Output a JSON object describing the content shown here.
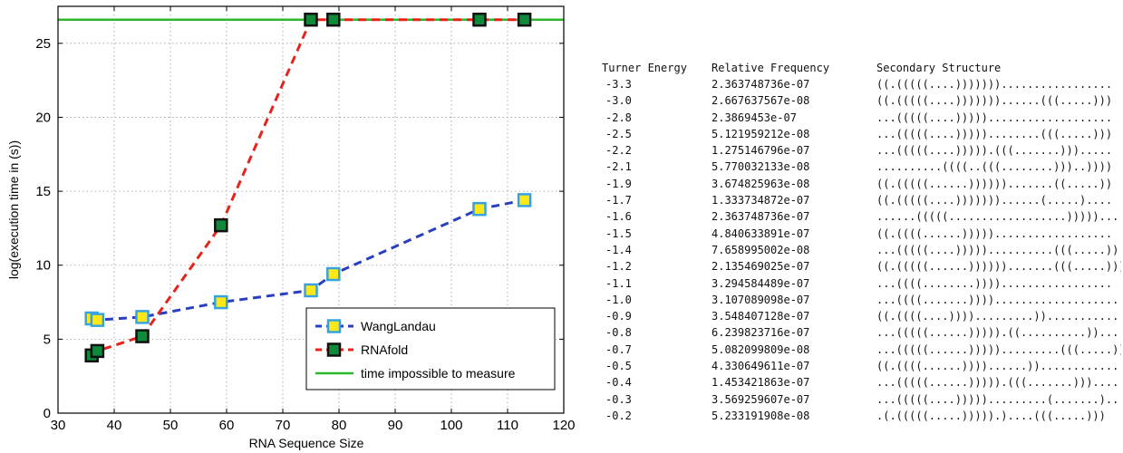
{
  "chart_data": {
    "type": "line",
    "xlabel": "RNA Sequence Size",
    "ylabel": "log(execution time in (s))",
    "xlim": [
      30,
      120
    ],
    "ylim": [
      0,
      27.5
    ],
    "x_ticks": [
      30,
      40,
      50,
      60,
      70,
      80,
      90,
      100,
      110,
      120
    ],
    "y_ticks": [
      0,
      5,
      10,
      15,
      20,
      25
    ],
    "grid": true,
    "legend_position": "bottom-right",
    "series": [
      {
        "name": "WangLandau",
        "color": "#2a3fbf",
        "marker_face": "#ffe81a",
        "marker_edge": "#36a3e0",
        "points": [
          [
            36,
            6.4
          ],
          [
            37,
            6.3
          ],
          [
            45,
            6.5
          ],
          [
            59,
            7.5
          ],
          [
            75,
            8.3
          ],
          [
            79,
            9.4
          ],
          [
            105,
            13.8
          ],
          [
            113,
            14.4
          ]
        ]
      },
      {
        "name": "RNAfold",
        "color": "#e8231c",
        "marker_face": "#0e8a3a",
        "marker_edge": "#111111",
        "points": [
          [
            36,
            3.9
          ],
          [
            37,
            4.2
          ],
          [
            45,
            5.2
          ],
          [
            59,
            12.7
          ],
          [
            75,
            26.6
          ],
          [
            79,
            26.6
          ],
          [
            105,
            26.6
          ],
          [
            113,
            26.6
          ]
        ]
      },
      {
        "name": "time impossible to measure",
        "color": "#2bb82b",
        "type": "hline",
        "y": 26.6
      }
    ]
  },
  "table": {
    "headers": [
      "Turner Energy",
      "Relative Frequency",
      "Secondary Structure"
    ],
    "rows": [
      [
        "-3.3",
        "2.363748736e-07",
        "((.(((((....)))))))................."
      ],
      [
        "-3.0",
        "2.667637567e-08",
        "((.(((((....)))))))......(((.....)))"
      ],
      [
        "-2.8",
        "2.3869453e-07",
        "...(((((....)))))..................."
      ],
      [
        "-2.5",
        "5.121959212e-08",
        "...(((((....)))))........(((.....)))"
      ],
      [
        "-2.2",
        "1.275146796e-07",
        "...(((((....))))).(((.......)))....."
      ],
      [
        "-2.1",
        "5.770032133e-08",
        "..........((((..(((........)))..))))"
      ],
      [
        "-1.9",
        "3.674825963e-08",
        "((.(((((......)))))).......((.....))"
      ],
      [
        "-1.7",
        "1.333734872e-07",
        "((.(((((....)))))))......(.....)...."
      ],
      [
        "-1.6",
        "2.363748736e-07",
        "......(((((..................)))))...."
      ],
      [
        "-1.5",
        "4.840633891e-07",
        "((.((((......))))).................."
      ],
      [
        "-1.4",
        "7.658995002e-08",
        "...(((((....)))))..........(((.....))."
      ],
      [
        "-1.2",
        "2.135469025e-07",
        "((.(((((......)))))).......(((.....)))"
      ],
      [
        "-1.1",
        "3.294584489e-07",
        "...((((........))))................."
      ],
      [
        "-1.0",
        "3.107089098e-07",
        "...((((.......))))..................."
      ],
      [
        "-0.9",
        "3.548407128e-07",
        "((.((((....)))).........))..........."
      ],
      [
        "-0.8",
        "6.239823716e-07",
        "...(((((......))))).((..........))....."
      ],
      [
        "-0.7",
        "5.082099809e-08",
        "...(((((......))))).........(((.....)))"
      ],
      [
        "-0.5",
        "4.330649611e-07",
        "((.((((......))))......))............"
      ],
      [
        "-0.4",
        "1.453421863e-07",
        "...(((((......))))).(((.......)))....."
      ],
      [
        "-0.3",
        "3.569259607e-07",
        "...(((((....))))).........(.......)..."
      ],
      [
        "-0.2",
        "5.233191908e-08",
        ".(.(((((.....))))).)....(((.....)))"
      ]
    ]
  }
}
